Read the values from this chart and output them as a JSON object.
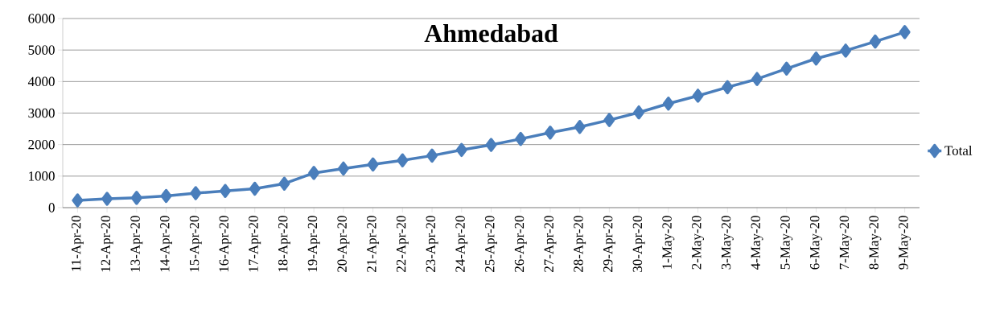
{
  "chart_data": {
    "type": "line",
    "title": "Ahmedabad",
    "categories": [
      "11-Apr-20",
      "12-Apr-20",
      "13-Apr-20",
      "14-Apr-20",
      "15-Apr-20",
      "16-Apr-20",
      "17-Apr-20",
      "18-Apr-20",
      "19-Apr-20",
      "20-Apr-20",
      "21-Apr-20",
      "22-Apr-20",
      "23-Apr-20",
      "24-Apr-20",
      "25-Apr-20",
      "26-Apr-20",
      "27-Apr-20",
      "28-Apr-20",
      "29-Apr-20",
      "30-Apr-20",
      "1-May-20",
      "2-May-20",
      "3-May-20",
      "4-May-20",
      "5-May-20",
      "6-May-20",
      "7-May-20",
      "8-May-20",
      "9-May-20"
    ],
    "series": [
      {
        "name": "Total",
        "color": "#4a7ebb",
        "values": [
          230,
          280,
          310,
          370,
          460,
          530,
          600,
          760,
          1100,
          1240,
          1370,
          1500,
          1650,
          1830,
          1990,
          2180,
          2380,
          2560,
          2780,
          3020,
          3300,
          3550,
          3820,
          4080,
          4410,
          4730,
          4980,
          5270,
          5570
        ]
      }
    ],
    "ylim": [
      0,
      6000
    ],
    "yticks": [
      0,
      1000,
      2000,
      3000,
      4000,
      5000,
      6000
    ],
    "grid": "y",
    "legend": "right",
    "marker": "diamond",
    "line_style": "solid"
  }
}
